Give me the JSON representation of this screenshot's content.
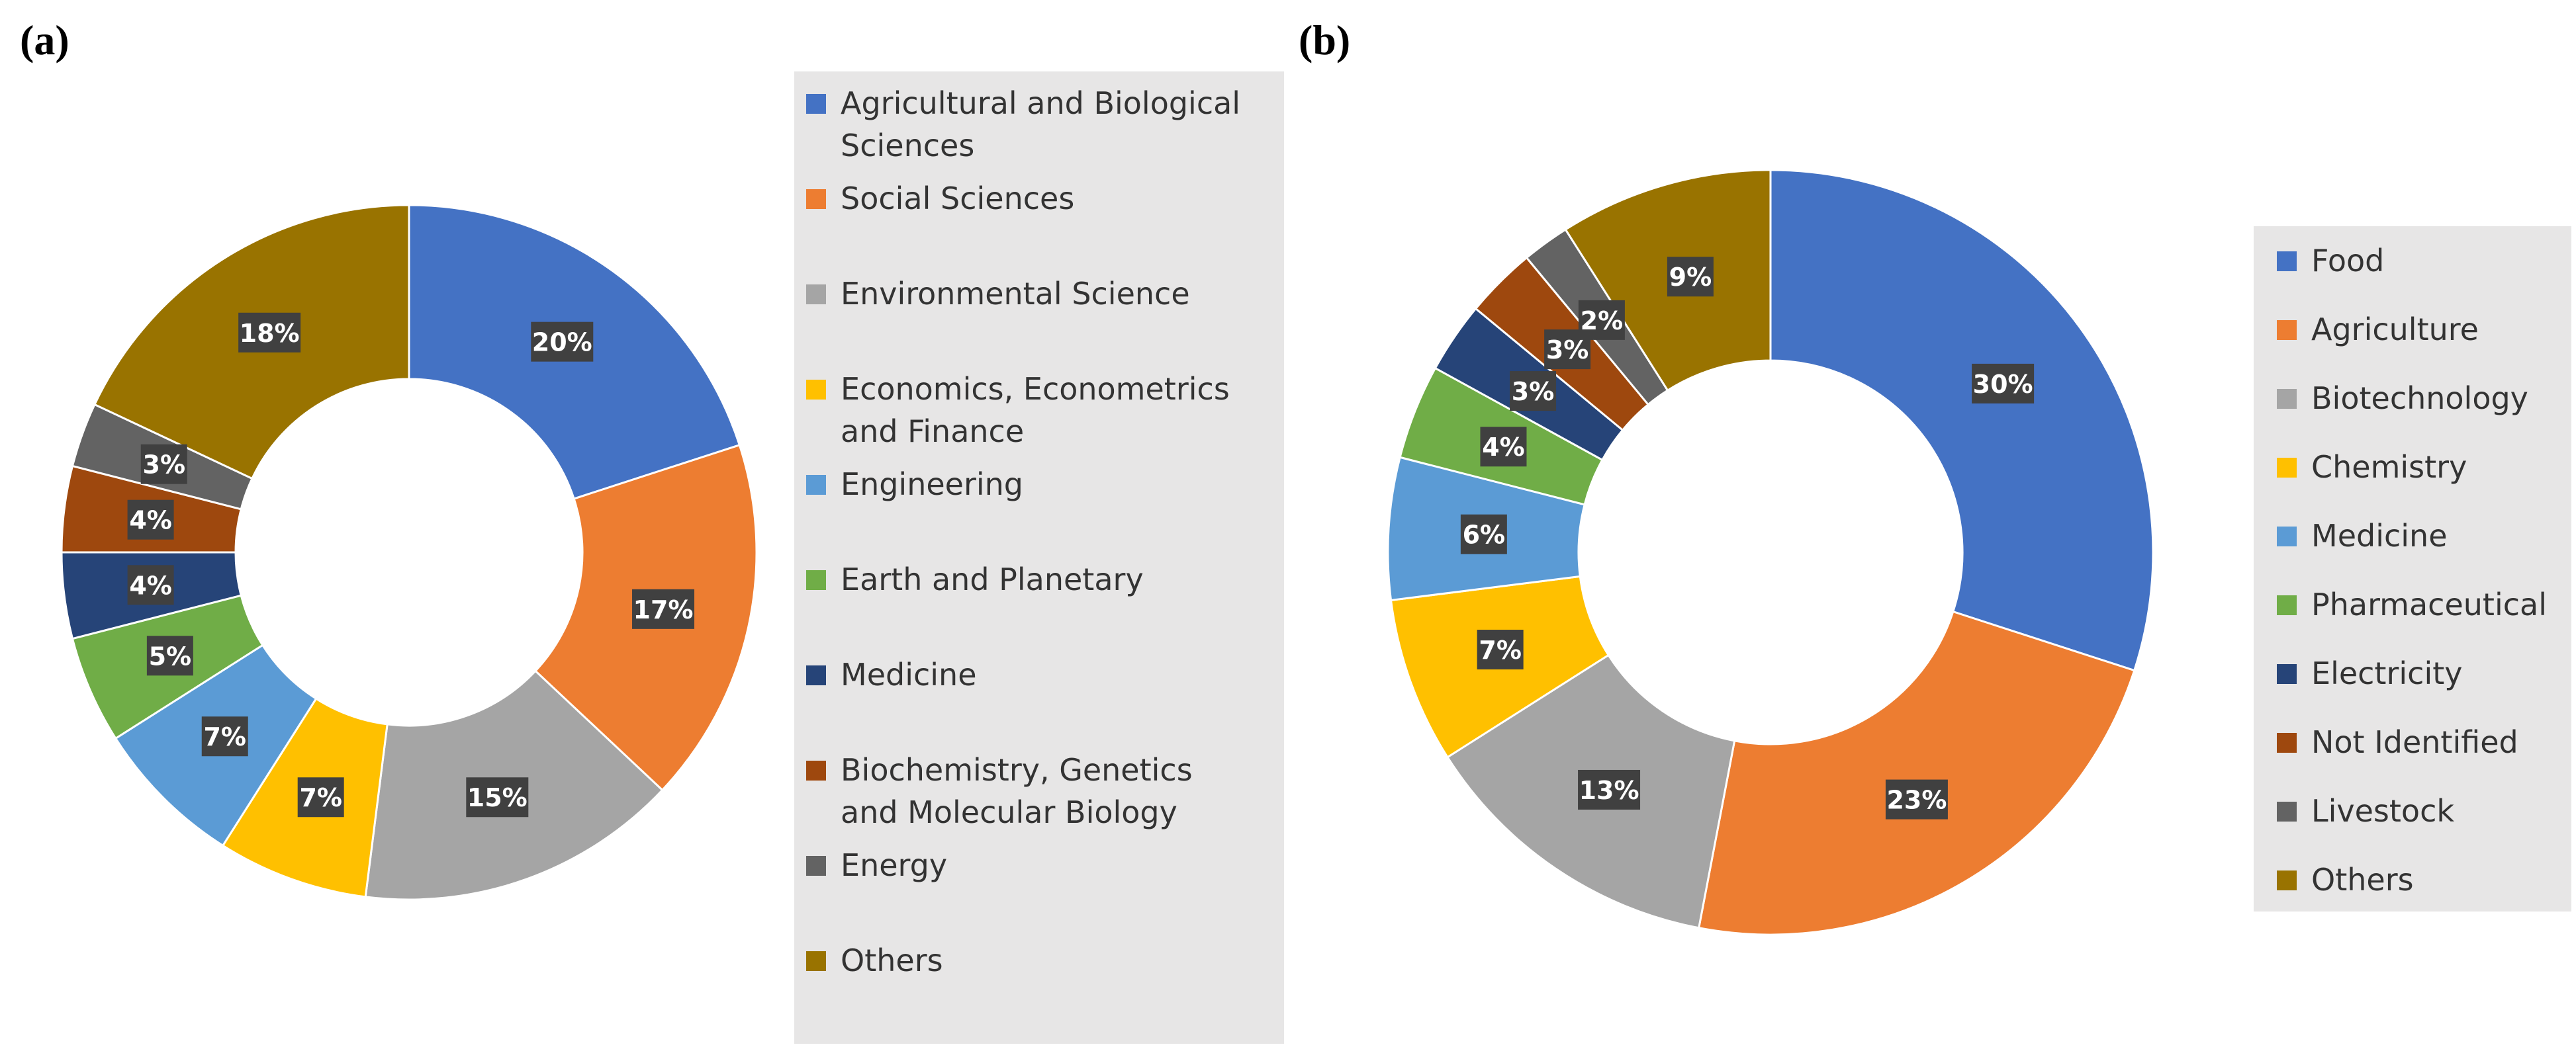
{
  "chart_data": [
    {
      "type": "pie",
      "style": "donut",
      "panel_label": "(a)",
      "categories": [
        "Agricultural and Biological Sciences",
        "Social Sciences",
        "Environmental Science",
        "Economics, Econometrics and Finance",
        "Engineering",
        "Earth and Planetary",
        "Medicine",
        "Biochemistry, Genetics and Molecular Biology",
        "Energy",
        "Others"
      ],
      "legend_lines": [
        [
          "Agricultural and Biological",
          "Sciences"
        ],
        [
          "Social Sciences"
        ],
        [
          "Environmental Science"
        ],
        [
          "Economics, Econometrics",
          "and Finance"
        ],
        [
          "Engineering"
        ],
        [
          "Earth and Planetary"
        ],
        [
          "Medicine"
        ],
        [
          "Biochemistry, Genetics",
          "and Molecular Biology"
        ],
        [
          "Energy"
        ],
        [
          "Others"
        ]
      ],
      "values": [
        20,
        17,
        15,
        7,
        7,
        5,
        4,
        4,
        3,
        18
      ],
      "labels": [
        "20%",
        "17%",
        "15%",
        "7%",
        "7%",
        "5%",
        "4%",
        "4%",
        "3%",
        "18%"
      ],
      "colors": [
        "#4472C4",
        "#ED7D31",
        "#A5A5A5",
        "#FFC000",
        "#5B9BD5",
        "#70AD47",
        "#264478",
        "#9E480E",
        "#636363",
        "#997300"
      ],
      "legend_position": "right"
    },
    {
      "type": "pie",
      "style": "donut",
      "panel_label": "(b)",
      "categories": [
        "Food",
        "Agriculture",
        "Biotechnology",
        "Chemistry",
        "Medicine",
        "Pharmaceutical",
        "Electricity",
        "Not Identified",
        "Livestock",
        "Others"
      ],
      "legend_lines": [
        [
          "Food"
        ],
        [
          "Agriculture"
        ],
        [
          "Biotechnology"
        ],
        [
          "Chemistry"
        ],
        [
          "Medicine"
        ],
        [
          "Pharmaceutical"
        ],
        [
          "Electricity"
        ],
        [
          "Not Identified"
        ],
        [
          "Livestock"
        ],
        [
          "Others"
        ]
      ],
      "values": [
        30,
        23,
        13,
        7,
        6,
        4,
        3,
        3,
        2,
        9
      ],
      "labels": [
        "30%",
        "23%",
        "13%",
        "7%",
        "6%",
        "4%",
        "3%",
        "3%",
        "2%",
        "9%"
      ],
      "colors": [
        "#4472C4",
        "#ED7D31",
        "#A5A5A5",
        "#FFC000",
        "#5B9BD5",
        "#70AD47",
        "#264478",
        "#9E480E",
        "#636363",
        "#997300"
      ],
      "legend_position": "right"
    }
  ]
}
